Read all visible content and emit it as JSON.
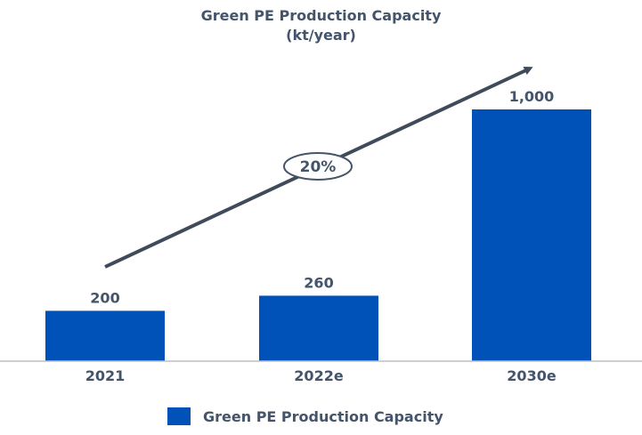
{
  "chart_data": {
    "type": "bar",
    "title": "Green PE Production Capacity",
    "subtitle": "(kt/year)",
    "categories": [
      "2021",
      "2022e",
      "2030e"
    ],
    "series": [
      {
        "name": "Green PE Production Capacity",
        "values": [
          200,
          260,
          1000
        ]
      }
    ],
    "value_labels": [
      "200",
      "260",
      "1,000"
    ],
    "annotation": "20%",
    "ylim": [
      0,
      1000
    ],
    "grid": false,
    "legend": "bottom",
    "colors": {
      "bar": "#0052b8",
      "text": "#44546a",
      "arrow": "#3f4a5a",
      "axis": "#bfbfbf"
    }
  }
}
